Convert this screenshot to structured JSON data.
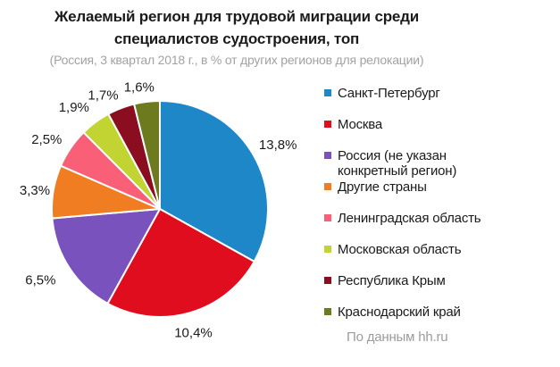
{
  "header": {
    "title_line1": "Желаемый регион для трудовой миграции среди",
    "title_line2": "специалистов судостроения, топ",
    "subtitle": "(Россия, 3 квартал 2018 г., в % от других регионов для релокации)"
  },
  "chart_data": {
    "type": "pie",
    "title": "Желаемый регион для трудовой миграции среди специалистов судостроения, топ",
    "subtitle": "(Россия, 3 квартал 2018 г., в % от других регионов для релокации)",
    "categories": [
      "Санкт-Петербург",
      "Москва",
      "Россия (не указан конкретный регион)",
      "Другие страны",
      "Ленинградская область",
      "Московская область",
      "Республика Крым",
      "Краснодарский край"
    ],
    "values": [
      13.8,
      10.4,
      6.5,
      3.3,
      2.5,
      1.9,
      1.7,
      1.6
    ],
    "labels": [
      "13,8%",
      "10,4%",
      "6,5%",
      "3,3%",
      "2,5%",
      "1,9%",
      "1,7%",
      "1,6%"
    ],
    "colors": [
      "#1E87C8",
      "#E00D1E",
      "#7A52BE",
      "#F07D21",
      "#FA5F78",
      "#C1D431",
      "#8B0E20",
      "#6D7B1E"
    ],
    "start_angle_deg": 0,
    "direction": "clockwise",
    "legend_position": "right",
    "slice_border_color": "#FFFFFF",
    "label_color": "#1A1A1A"
  },
  "footer": {
    "source": "По данным hh.ru"
  }
}
